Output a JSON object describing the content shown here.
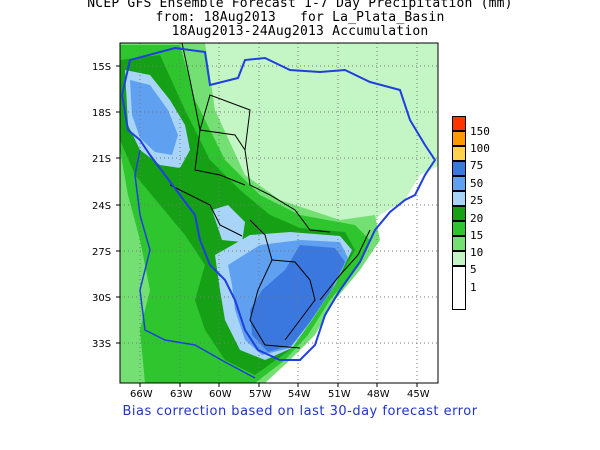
{
  "title": {
    "line1": "NCEP GFS Ensemble Forecast 1-7 Day Precipitation (mm)",
    "line2": "from: 18Aug2013   for La_Plata_Basin",
    "line3": "18Aug2013-24Aug2013 Accumulation"
  },
  "footer_note": "Bias correction based on last 30-day forecast error",
  "axes": {
    "lat_labels": [
      "15S",
      "18S",
      "21S",
      "24S",
      "27S",
      "30S",
      "33S"
    ],
    "lon_labels": [
      "66W",
      "63W",
      "60W",
      "57W",
      "54W",
      "51W",
      "48W",
      "45W"
    ]
  },
  "legend": {
    "items": [
      {
        "label": "150",
        "color": "#ff3300"
      },
      {
        "label": "100",
        "color": "#ff9900"
      },
      {
        "label": "75",
        "color": "#ffd24d"
      },
      {
        "label": "50",
        "color": "#3a78e0"
      },
      {
        "label": "25",
        "color": "#5fa0f0"
      },
      {
        "label": "20",
        "color": "#a8d4f8"
      },
      {
        "label": "15",
        "color": "#16a016"
      },
      {
        "label": "10",
        "color": "#2ec52e"
      },
      {
        "label": "5",
        "color": "#74e074"
      },
      {
        "label": "1",
        "color": "#c4f5c4"
      },
      {
        "label": "",
        "color": "#ffffff"
      }
    ]
  },
  "colors": {
    "basin_outline": "#1f3fe0",
    "border_lines": "#000000",
    "grid": "#777777"
  }
}
